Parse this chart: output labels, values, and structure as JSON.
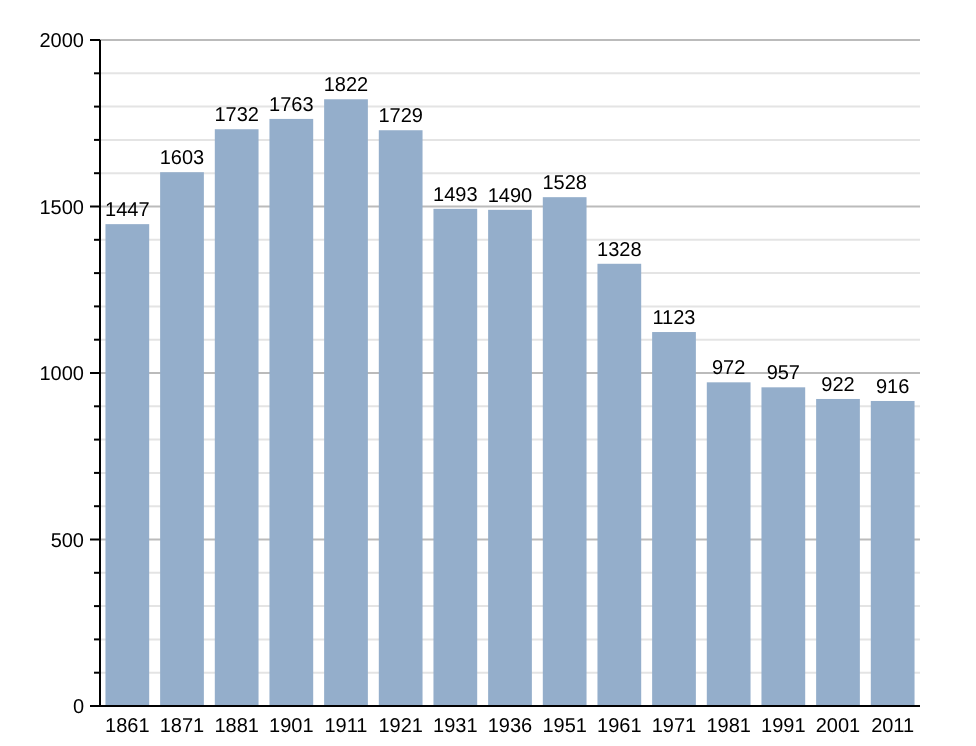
{
  "chart_data": {
    "type": "bar",
    "categories": [
      "1861",
      "1871",
      "1881",
      "1901",
      "1911",
      "1921",
      "1931",
      "1936",
      "1951",
      "1961",
      "1971",
      "1981",
      "1991",
      "2001",
      "2011"
    ],
    "values": [
      1447,
      1603,
      1732,
      1763,
      1822,
      1729,
      1493,
      1490,
      1528,
      1328,
      1123,
      972,
      957,
      922,
      916
    ],
    "color": "#94aecb",
    "ylim": [
      0,
      2000
    ],
    "yticks": [
      0,
      {
        "value": 100,
        "label": null
      },
      {
        "value": 200,
        "label": null
      },
      {
        "value": 300,
        "label": null
      },
      {
        "value": 400,
        "label": null
      },
      500,
      {
        "value": 600,
        "label": null
      },
      {
        "value": 700,
        "label": null
      },
      {
        "value": 800,
        "label": null
      },
      {
        "value": 900,
        "label": null
      },
      1000,
      {
        "value": 1100,
        "label": null
      },
      {
        "value": 1200,
        "label": null
      },
      {
        "value": 1300,
        "label": null
      },
      {
        "value": 1400,
        "label": null
      },
      1500,
      {
        "value": 1600,
        "label": null
      },
      {
        "value": 1700,
        "label": null
      },
      {
        "value": 1800,
        "label": null
      },
      {
        "value": 1900,
        "label": null
      },
      2000
    ],
    "grid": true,
    "data_labels": true
  }
}
